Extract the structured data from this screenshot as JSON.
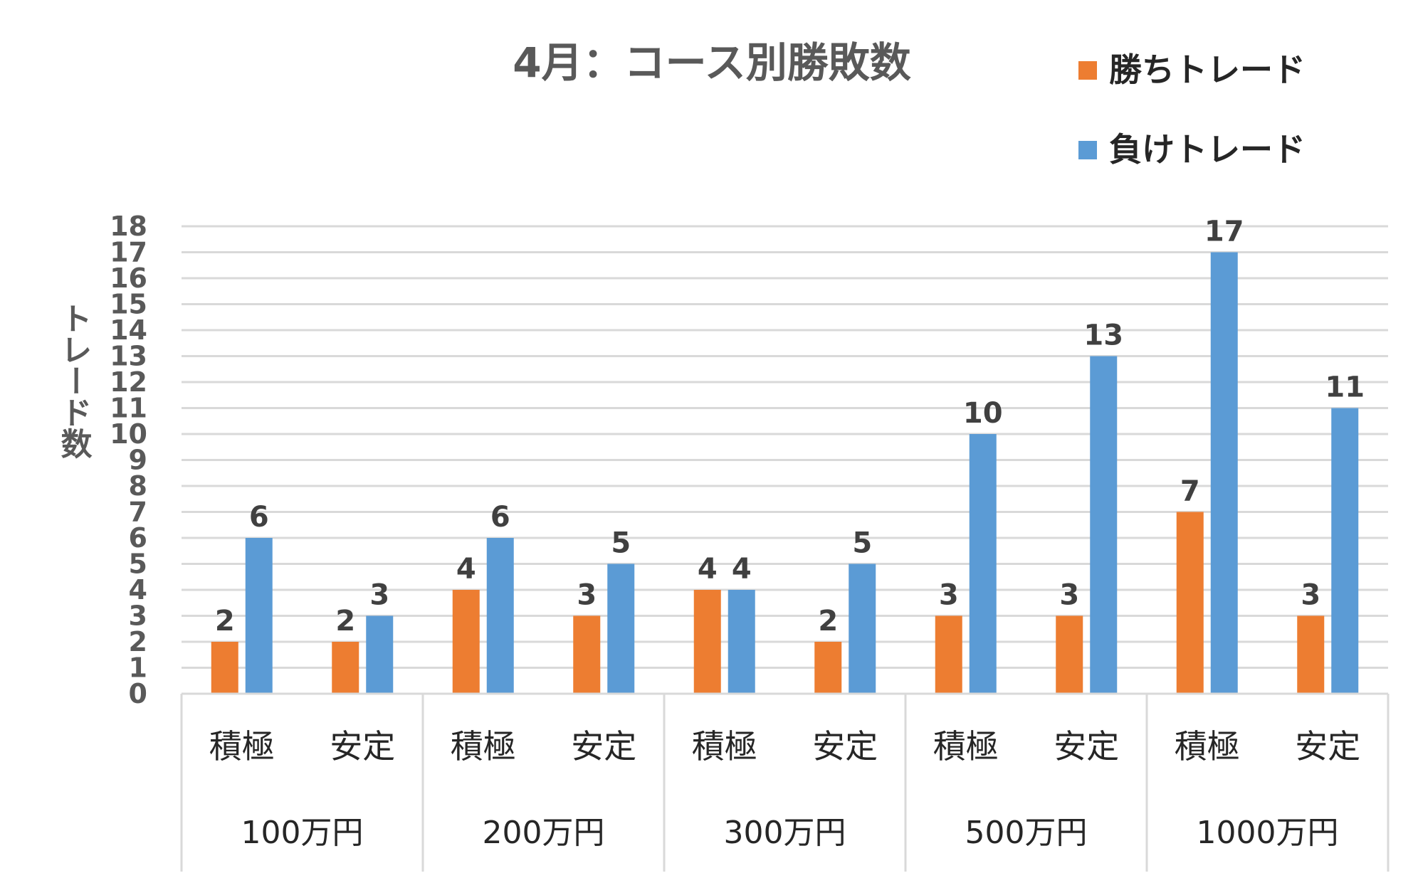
{
  "chart_data": {
    "type": "bar",
    "title": "4月：コース別勝敗数",
    "ylabel": "トレード数",
    "ylim": [
      0,
      18
    ],
    "yticks": [
      0,
      1,
      2,
      3,
      4,
      5,
      6,
      7,
      8,
      9,
      10,
      11,
      12,
      13,
      14,
      15,
      16,
      17,
      18
    ],
    "categories": [
      "積極",
      "安定",
      "積極",
      "安定",
      "積極",
      "安定",
      "積極",
      "安定",
      "積極",
      "安定"
    ],
    "groups": [
      "100万円",
      "200万円",
      "300万円",
      "500万円",
      "1000万円"
    ],
    "series": [
      {
        "name": "勝ちトレード",
        "color": "#ed7d31",
        "values": [
          2,
          2,
          4,
          3,
          4,
          2,
          3,
          3,
          7,
          3
        ]
      },
      {
        "name": "負けトレード",
        "color": "#5b9bd5",
        "values": [
          6,
          3,
          6,
          5,
          4,
          5,
          10,
          13,
          17,
          11
        ]
      }
    ],
    "legend_position": "top-right",
    "grid": true
  }
}
